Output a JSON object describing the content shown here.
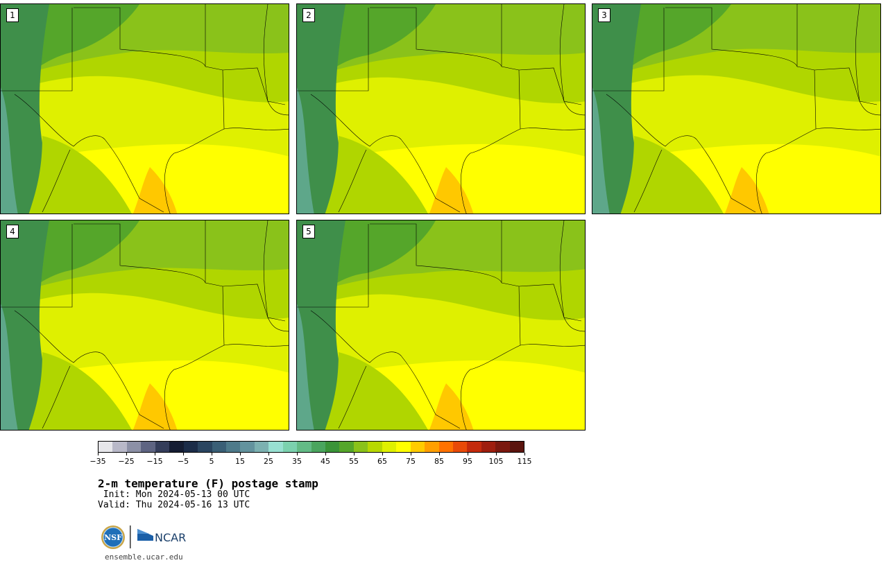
{
  "panels": [
    {
      "label": "1",
      "variant": 0
    },
    {
      "label": "2",
      "variant": 1
    },
    {
      "label": "3",
      "variant": 2
    },
    {
      "label": "4",
      "variant": 3
    },
    {
      "label": "5",
      "variant": 4
    }
  ],
  "colorbar": {
    "tick_labels": [
      "−35",
      "−25",
      "−15",
      "−5",
      "5",
      "15",
      "25",
      "35",
      "45",
      "55",
      "65",
      "75",
      "85",
      "95",
      "105",
      "115"
    ],
    "colors": [
      "#e6e6ea",
      "#b8b8c8",
      "#8c90a6",
      "#5e6482",
      "#343d5a",
      "#141c32",
      "#1b2c48",
      "#2a4560",
      "#3a5f76",
      "#4e7a8a",
      "#63939e",
      "#7cb1b1",
      "#98e0d2",
      "#7bd1ae",
      "#63bb86",
      "#4aa55e",
      "#3a9438",
      "#55a62a",
      "#8ac21a",
      "#b8d800",
      "#dff000",
      "#ffff00",
      "#ffcb00",
      "#ff9f00",
      "#ff7200",
      "#e84a08",
      "#c42a0c",
      "#9e1e0e",
      "#7a180e",
      "#5a140e"
    ]
  },
  "title": "2-m temperature (F) postage stamp",
  "init": " Init: Mon 2024-05-13 00 UTC",
  "valid": "Valid: Thu 2024-05-16 13 UTC",
  "logos": {
    "nsf": "NSF",
    "ncar": "NCAR"
  },
  "footer_url": "ensemble.ucar.edu"
}
